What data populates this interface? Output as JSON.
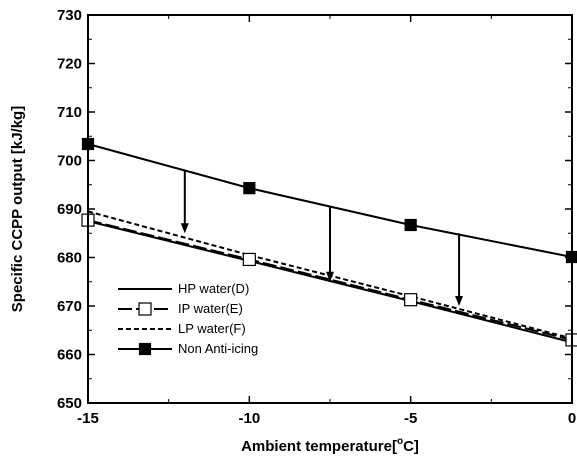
{
  "chart_data": {
    "type": "line",
    "xlabel": "Ambient temperature[°C]",
    "xlabel_parts": {
      "before": "Ambient temperature[",
      "sup": "o",
      "after": "C]"
    },
    "ylabel": "Specific CCPP output [kJ/kg]",
    "xlim": [
      -15,
      0
    ],
    "ylim": [
      650,
      730
    ],
    "xticks": [
      -15,
      -10,
      -5,
      0
    ],
    "yticks": [
      650,
      660,
      670,
      680,
      690,
      700,
      710,
      720,
      730
    ],
    "grid": false,
    "legend_position": "bottom-left",
    "series": [
      {
        "name": "HP water(D)",
        "style": "solid",
        "marker": "none",
        "color": "#000000",
        "x": [
          -15,
          -10,
          -5,
          0
        ],
        "y": [
          687.5,
          679.3,
          671.0,
          662.5
        ]
      },
      {
        "name": "IP water(E)",
        "style": "long-dash",
        "marker": "open-square",
        "color": "#000000",
        "x": [
          -15,
          -10,
          -5,
          0
        ],
        "y": [
          687.7,
          679.6,
          671.3,
          663.0
        ]
      },
      {
        "name": "LP water(F)",
        "style": "short-dash",
        "marker": "none",
        "color": "#000000",
        "x": [
          -15,
          -10,
          -5,
          0
        ],
        "y": [
          689.5,
          680.5,
          672.0,
          663.3
        ]
      },
      {
        "name": "Non Anti-icing",
        "style": "solid",
        "marker": "filled-square",
        "color": "#000000",
        "x": [
          -15,
          -10,
          -5,
          0
        ],
        "y": [
          703.4,
          694.3,
          686.7,
          680.1
        ]
      }
    ],
    "annotations": [
      {
        "type": "arrow",
        "from": [
          -12,
          698
        ],
        "to": [
          -12,
          685
        ]
      },
      {
        "type": "arrow",
        "from": [
          -7.5,
          690.5
        ],
        "to": [
          -7.5,
          675
        ]
      },
      {
        "type": "arrow",
        "from": [
          -3.5,
          685
        ],
        "to": [
          -3.5,
          670
        ]
      }
    ]
  }
}
